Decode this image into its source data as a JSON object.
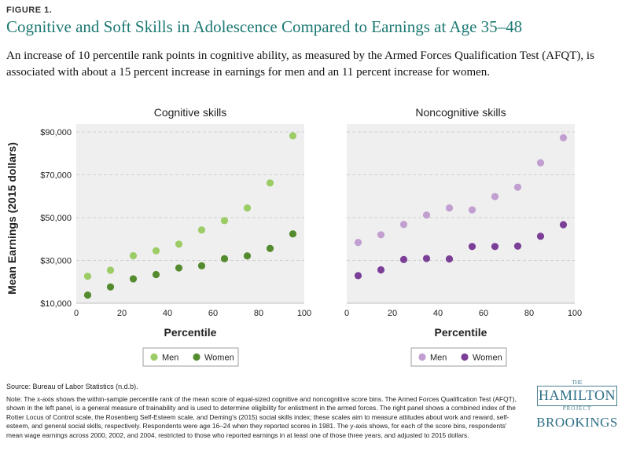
{
  "figure_label": "FIGURE 1.",
  "title": "Cognitive and Soft Skills in Adolescence Compared to Earnings at Age 35–48",
  "subtitle": "An increase of 10 percentile rank points in cognitive ability, as measured by the Armed Forces Qualification Test (AFQT), is associated with about a 15 percent increase in earnings for men and an 11 percent increase for women.",
  "y_axis_title": "Mean Earnings (2015 dollars)",
  "colors": {
    "title": "#1d7a73",
    "cog_men": "#9ccc65",
    "cog_women": "#558b2f",
    "noncog_men": "#c29fd1",
    "noncog_women": "#7b3f98",
    "panel_bg": "#efefef",
    "grid": "#cfcfcf"
  },
  "chart_data": [
    {
      "type": "scatter",
      "title": "Cognitive skills",
      "xlabel": "Percentile",
      "ylabel": "Mean Earnings (2015 dollars)",
      "xlim": [
        0,
        100
      ],
      "ylim": [
        10000,
        90000
      ],
      "x_ticks": [
        0,
        20,
        40,
        60,
        80,
        100
      ],
      "y_ticks": [
        10000,
        30000,
        50000,
        70000,
        90000
      ],
      "y_tick_labels": [
        "$10,000",
        "$30,000",
        "$50,000",
        "$70,000",
        "$90,000"
      ],
      "grid": true,
      "legend": "bottom-center",
      "x": [
        5,
        15,
        25,
        35,
        45,
        55,
        65,
        75,
        85,
        95
      ],
      "series": [
        {
          "name": "Men",
          "color": "#9ccc65",
          "values": [
            22600,
            25400,
            32200,
            34500,
            37600,
            44200,
            48600,
            54500,
            66200,
            88200
          ]
        },
        {
          "name": "Women",
          "color": "#558b2f",
          "values": [
            13800,
            17600,
            21400,
            23400,
            26500,
            27500,
            30800,
            32100,
            35600,
            42400
          ]
        }
      ]
    },
    {
      "type": "scatter",
      "title": "Noncognitive skills",
      "xlabel": "Percentile",
      "xlim": [
        0,
        100
      ],
      "ylim": [
        10000,
        90000
      ],
      "x_ticks": [
        0,
        20,
        40,
        60,
        80,
        100
      ],
      "grid": true,
      "legend": "bottom-center",
      "x": [
        5,
        15,
        25,
        35,
        45,
        55,
        65,
        75,
        85,
        95
      ],
      "series": [
        {
          "name": "Men",
          "color": "#c29fd1",
          "values": [
            38400,
            42000,
            46800,
            51200,
            54500,
            53600,
            59800,
            64200,
            75600,
            87300
          ]
        },
        {
          "name": "Women",
          "color": "#7b3f98",
          "values": [
            22900,
            25600,
            30400,
            30900,
            30700,
            36500,
            36500,
            36700,
            41300,
            46700
          ]
        }
      ]
    }
  ],
  "source": "Source: Bureau of Labor Statistics (n.d.b).",
  "note": "Note: The x-axis shows the within-sample percentile rank of the mean score of equal-sized cognitive and noncognitive score bins. The Armed Forces Qualification Test (AFQT), shown in the left panel, is a general measure of trainability and is used to determine eligibility for enlistment in the armed forces. The right panel shows a combined index of the Rotter Locus of Control scale, the Rosenberg Self-Esteem scale, and Deming's (2015) social skills index; these scales aim to measure attitudes about work and reward, self-esteem, and general social skills, respectively. Respondents were age 16–24 when they reported scores in 1981. The y-axis shows, for each of the score bins, respondents' mean wage earnings across 2000, 2002, and 2004, restricted to those who reported earnings in at least one of those three years, and adjusted to 2015 dollars.",
  "logo": {
    "the": "THE",
    "hamilton": "HAMILTON",
    "project": "PROJECT",
    "brookings": "BROOKINGS"
  }
}
